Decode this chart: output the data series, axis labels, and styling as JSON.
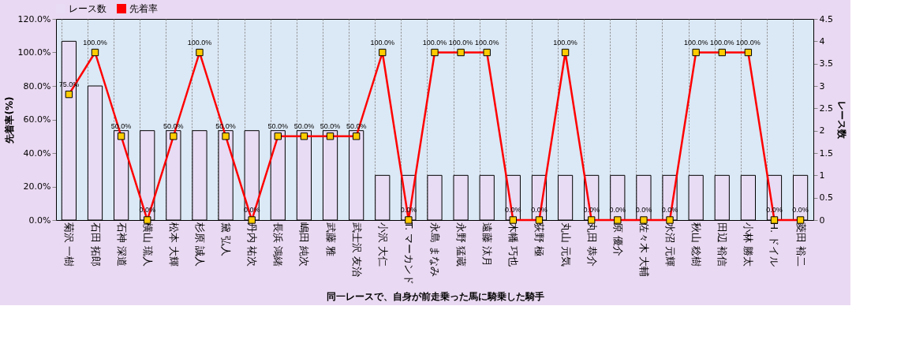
{
  "chart_data": {
    "type": "bar",
    "xlabel": "同一レースで、自身が前走乗った馬に騎乗した騎手",
    "ylabel": "先着率(%)",
    "y2label": "レース数",
    "categories": [
      "菊沢 一樹",
      "石田 拓郎",
      "石神 深道",
      "横山 琉人",
      "松本 大輝",
      "杉原 誠人",
      "黛 弘人",
      "丹内 祐次",
      "長浜 鴻緒",
      "嶋田 純次",
      "武藤 雅",
      "武士沢 友治",
      "小沢 大仁",
      "T. マーカンド",
      "永島 まなみ",
      "永野 猛蔵",
      "遠藤 汰月",
      "木幡 巧也",
      "荻野 極",
      "丸山 元気",
      "丸田 恭介",
      "原 優介",
      "佐々木 大輔",
      "水沼 元輝",
      "秋山 稔樹",
      "田辺 裕信",
      "小林 勝太",
      "H. ドイル",
      "菱田 裕二"
    ],
    "series": [
      {
        "name": "レース数",
        "axis": "y2",
        "color": "#e8dcf5",
        "values": [
          4,
          3,
          2,
          2,
          2,
          2,
          2,
          2,
          2,
          2,
          2,
          2,
          1,
          1,
          1,
          1,
          1,
          1,
          1,
          1,
          1,
          1,
          1,
          1,
          1,
          1,
          1,
          1,
          1
        ]
      },
      {
        "name": "先着率",
        "type": "line",
        "axis": "y",
        "color": "#ff0000",
        "marker": "square",
        "values": [
          75,
          100,
          50,
          0,
          50,
          100,
          50,
          0,
          50,
          50,
          50,
          50,
          100,
          0,
          100,
          100,
          100,
          0,
          0,
          100,
          0,
          0,
          0,
          0,
          100,
          100,
          100,
          0,
          0
        ],
        "value_labels": [
          "75.0%",
          "100.0%",
          "50.0%",
          "0.0%",
          "50.0%",
          "100.0%",
          "50.0%",
          "0.0%",
          "50.0%",
          "50.0%",
          "50.0%",
          "50.0%",
          "100.0%",
          "0.0%",
          "100.0%",
          "100.0%",
          "100.0%",
          "0.0%",
          "0.0%",
          "100.0%",
          "0.0%",
          "0.0%",
          "0.0%",
          "0.0%",
          "100.0%",
          "100.0%",
          "100.0%",
          "0.0%",
          "0.0%"
        ]
      }
    ],
    "ylim": [
      0,
      120
    ],
    "yticks": [
      {
        "value": 0,
        "label": "0.0%"
      },
      {
        "value": 20,
        "label": "20.0%"
      },
      {
        "value": 40,
        "label": "40.0%"
      },
      {
        "value": 60,
        "label": "60.0%"
      },
      {
        "value": 80,
        "label": "80.0%"
      },
      {
        "value": 100,
        "label": "100.0%"
      },
      {
        "value": 120,
        "label": "120.0%"
      }
    ],
    "y2lim": [
      0,
      4.5
    ],
    "y2ticks": [
      0,
      0.5,
      1,
      1.5,
      2,
      2.5,
      3,
      3.5,
      4,
      4.5
    ],
    "grid": "x",
    "legend": "top"
  }
}
